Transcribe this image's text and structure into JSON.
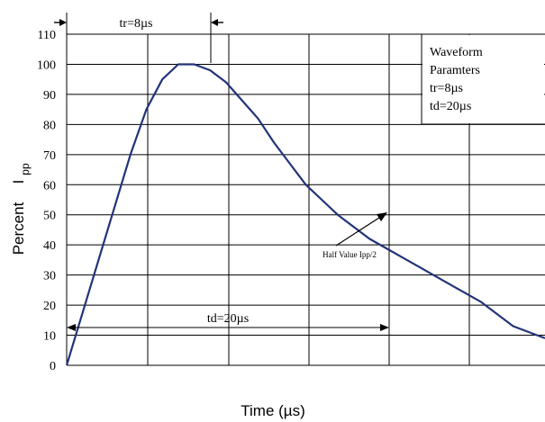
{
  "chart_data": {
    "type": "line",
    "xlabel": "Time (µs)",
    "ylabel": "Percent",
    "ylabel_sub": "I",
    "ylabel_subscript": "pp",
    "ylim": [
      0,
      110
    ],
    "xlim": [
      0,
      30
    ],
    "y_ticks": [
      "0",
      "10",
      "20",
      "30",
      "40",
      "50",
      "60",
      "70",
      "80",
      "90",
      "100",
      "110"
    ],
    "grid": true,
    "series": [
      {
        "color": "#22337a",
        "x": [
          0,
          2,
          4,
          5,
          6,
          7,
          8,
          9,
          10,
          11,
          12,
          13,
          14,
          15,
          16,
          17,
          18,
          19,
          20,
          21,
          22,
          24,
          26,
          28,
          30
        ],
        "y": [
          0,
          35,
          70,
          85,
          95,
          100,
          100,
          98,
          94,
          88,
          82,
          74,
          67,
          60,
          55,
          50,
          46,
          42,
          39,
          36,
          33,
          27,
          21,
          13,
          9
        ]
      }
    ],
    "annotations": {
      "tr_label": "tr=8µs",
      "td_label": "td=20µs",
      "half_value": "Half Value Ipp/2",
      "legend_lines": [
        "Waveform",
        "Paramters",
        "tr=8µs",
        "td=20µs"
      ]
    }
  }
}
